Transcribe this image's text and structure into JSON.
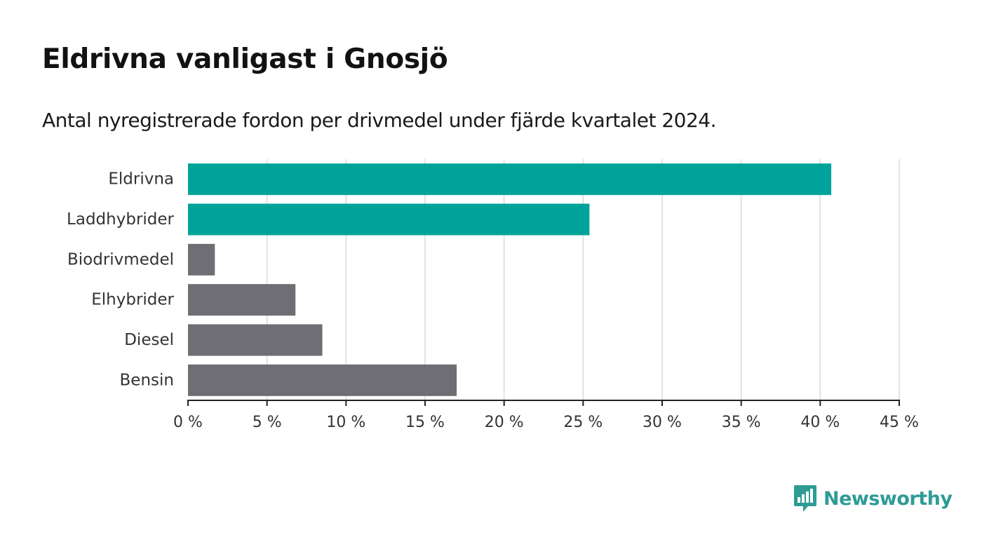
{
  "chart_data": {
    "type": "bar",
    "orientation": "horizontal",
    "title": "Eldrivna vanligast i Gnosjö",
    "subtitle": "Antal nyregistrerade fordon per drivmedel under fjärde kvartalet 2024.",
    "categories": [
      "Eldrivna",
      "Laddhybrider",
      "Biodrivmedel",
      "Elhybrider",
      "Diesel",
      "Bensin"
    ],
    "values": [
      40.7,
      25.4,
      1.7,
      6.8,
      8.5,
      17.0
    ],
    "highlighted": [
      true,
      true,
      false,
      false,
      false,
      false
    ],
    "xlim": [
      0,
      45
    ],
    "xticks": [
      0,
      5,
      10,
      15,
      20,
      25,
      30,
      35,
      40,
      45
    ],
    "tick_labels": [
      "0 %",
      "5 %",
      "10 %",
      "15 %",
      "20 %",
      "25 %",
      "30 %",
      "35 %",
      "40 %",
      "45 %"
    ],
    "xlabel": "",
    "ylabel": "",
    "grid": true,
    "colors": {
      "highlight": "#00a39a",
      "default": "#6f6e74",
      "grid": "#dadada",
      "axis": "#222222"
    }
  },
  "brand": {
    "name": "Newsworthy",
    "color": "#2e9c95",
    "icon": "bar-chart-speech-bubble-icon"
  }
}
